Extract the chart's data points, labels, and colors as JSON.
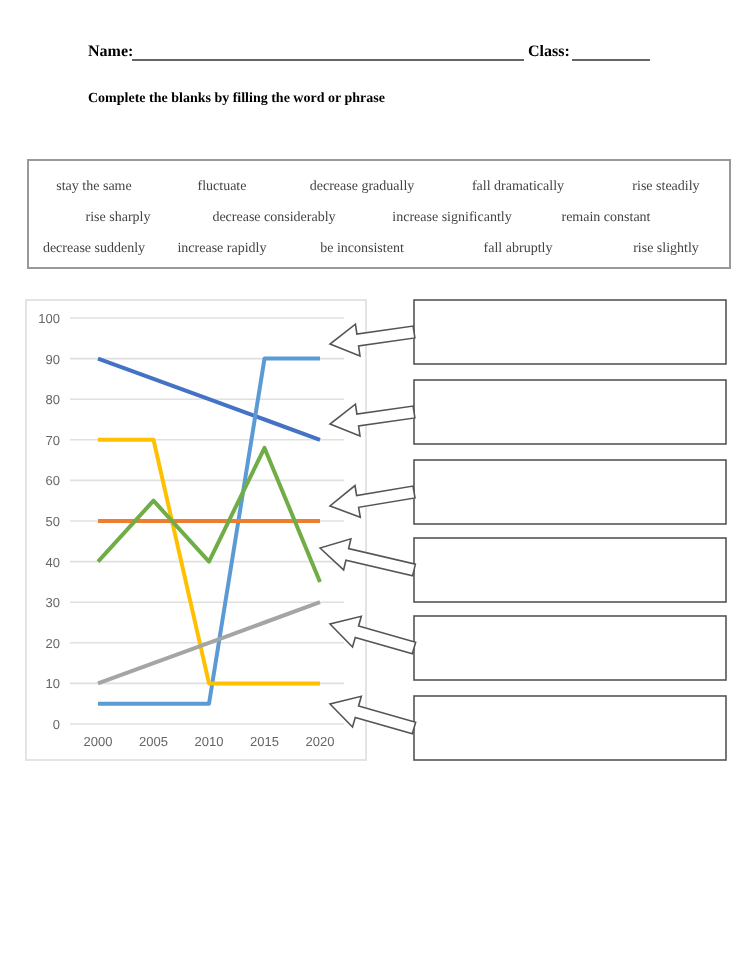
{
  "chart_data": {
    "type": "line",
    "title": "Complete the blanks by filling the word or phrase",
    "annotations": [
      "Name:",
      "Class:",
      "stay the same",
      "fluctuate",
      "decrease gradually",
      "fall dramatically",
      "rise steadily",
      "rise sharply",
      "decrease considerably",
      "increase significantly",
      "remain constant",
      "decrease suddenly",
      "increase rapidly",
      "be inconsistent",
      "fall abruptly",
      "rise slightly"
    ],
    "categories": [
      "2000",
      "2005",
      "2010",
      "2015",
      "2020"
    ],
    "series": [
      {
        "color": "#4472c4",
        "values": [
          90,
          85,
          80,
          75,
          70
        ]
      },
      {
        "color": "#5b9bd5",
        "values": [
          5,
          5,
          5,
          90,
          90
        ]
      },
      {
        "color": "#ffc000",
        "values": [
          70,
          70,
          10,
          10,
          10
        ]
      },
      {
        "color": "#ed7d31",
        "values": [
          50,
          50,
          50,
          50,
          50
        ]
      },
      {
        "color": "#70ad47",
        "values": [
          40,
          55,
          40,
          68,
          35
        ]
      },
      {
        "color": "#a5a5a5",
        "values": [
          10,
          15,
          20,
          25,
          30
        ]
      }
    ],
    "ylim": [
      0,
      100
    ],
    "yticks": [
      0,
      10,
      20,
      30,
      40,
      50,
      60,
      70,
      80,
      90,
      100
    ],
    "grid": "y",
    "marker": "none",
    "line_style": "solid"
  }
}
